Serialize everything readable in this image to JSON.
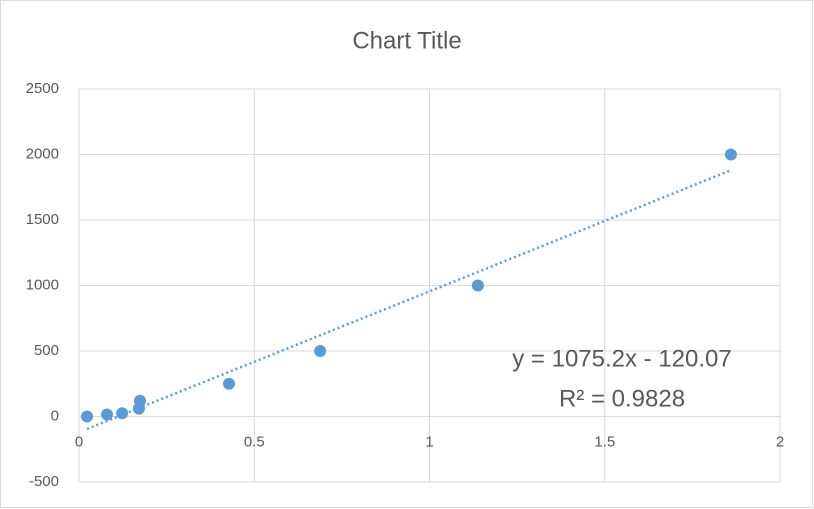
{
  "chart_data": {
    "type": "scatter",
    "title": "Chart Title",
    "x": [
      0.023,
      0.08,
      0.123,
      0.171,
      0.174,
      0.428,
      0.688,
      1.138,
      1.86
    ],
    "y": [
      0,
      15,
      25,
      60,
      120,
      250,
      500,
      1000,
      2000
    ],
    "color": "#5b9bd5",
    "xlim": [
      0,
      2
    ],
    "xticks": [
      0,
      0.5,
      1,
      1.5,
      2
    ],
    "ylim": [
      -500,
      2500
    ],
    "yticks": [
      -500,
      0,
      500,
      1000,
      1500,
      2000,
      2500
    ],
    "grid": true,
    "trendline": {
      "slope": 1075.2,
      "intercept": -120.07,
      "equation": "y = 1075.2x - 120.07",
      "r_squared": "R² = 0.9828"
    }
  }
}
